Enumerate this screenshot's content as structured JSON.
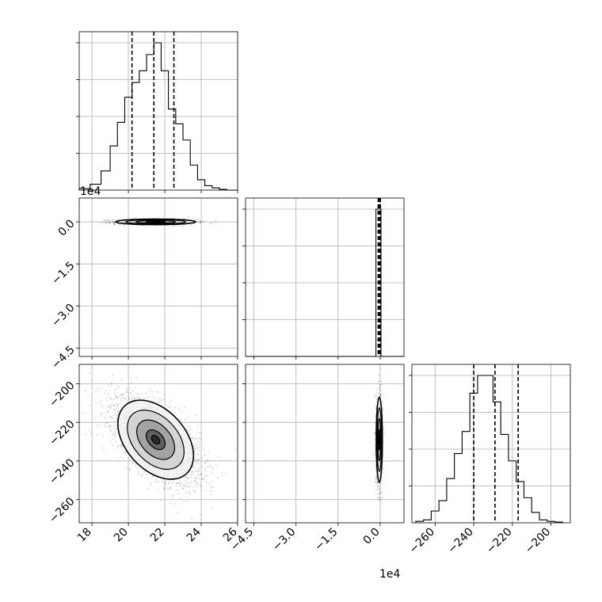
{
  "chart_data": {
    "type": "corner",
    "params": [
      {
        "id": "p0",
        "range": [
          17.3,
          26.0
        ],
        "ticks": [
          18,
          20,
          22,
          24,
          26
        ],
        "tick_labels": [
          "18",
          "20",
          "22",
          "24",
          "26"
        ],
        "offset_label": ""
      },
      {
        "id": "p1",
        "range": [
          -48000,
          8500
        ],
        "ticks": [
          -45000,
          -30000,
          -15000,
          0
        ],
        "tick_labels": [
          "−4.5",
          "−3.0",
          "−1.5",
          "0.0"
        ],
        "offset_label": "1e4"
      },
      {
        "id": "p2",
        "range": [
          -272,
          -190
        ],
        "ticks": [
          -260,
          -240,
          -220,
          -200
        ],
        "tick_labels": [
          "−260",
          "−240",
          "−220",
          "−200"
        ],
        "offset_label": ""
      }
    ],
    "histograms": [
      {
        "param": "p0",
        "bins": [
          17.3,
          17.9,
          18.5,
          19.0,
          19.4,
          19.8,
          20.2,
          20.6,
          21.0,
          21.4,
          21.8,
          22.2,
          22.6,
          23.0,
          23.4,
          23.8,
          24.2,
          24.6,
          25.0,
          25.4,
          25.8,
          26.0
        ],
        "counts": [
          0.01,
          0.04,
          0.13,
          0.3,
          0.46,
          0.63,
          0.73,
          0.81,
          0.92,
          1.0,
          0.81,
          0.55,
          0.45,
          0.34,
          0.17,
          0.07,
          0.03,
          0.015,
          0.005,
          0.0,
          0.0
        ],
        "quantiles": [
          20.2,
          21.4,
          22.5
        ]
      },
      {
        "param": "p1",
        "bins": [
          -48000,
          -1500,
          -600,
          300,
          8500
        ],
        "counts": [
          0,
          1.0,
          1.0,
          0
        ],
        "quantiles": [
          -700,
          -300,
          80
        ]
      },
      {
        "param": "p2",
        "bins": [
          -270,
          -266,
          -262,
          -258,
          -254,
          -250,
          -246,
          -242,
          -238,
          -234,
          -230,
          -226,
          -222,
          -218,
          -214,
          -210,
          -206,
          -202,
          -198,
          -194
        ],
        "counts": [
          0.01,
          0.02,
          0.08,
          0.15,
          0.3,
          0.47,
          0.62,
          0.88,
          1.0,
          1.0,
          0.82,
          0.6,
          0.42,
          0.28,
          0.17,
          0.07,
          0.02,
          0.01,
          0.005
        ],
        "quantiles": [
          -240,
          -229,
          -217
        ]
      }
    ],
    "scatter_panels": [
      {
        "x": "p0",
        "y": "p1",
        "center": [
          21.5,
          0
        ],
        "spread": [
          1.1,
          500
        ],
        "rho": 0.0,
        "n": 1200
      },
      {
        "x": "p0",
        "y": "p2",
        "center": [
          21.5,
          -229
        ],
        "spread": [
          1.2,
          11
        ],
        "rho": -0.6,
        "n": 2600
      },
      {
        "x": "p1",
        "y": "p2",
        "center": [
          -300,
          -229
        ],
        "spread": [
          550,
          11
        ],
        "rho": 0.0,
        "n": 1200
      }
    ],
    "grid": true
  }
}
